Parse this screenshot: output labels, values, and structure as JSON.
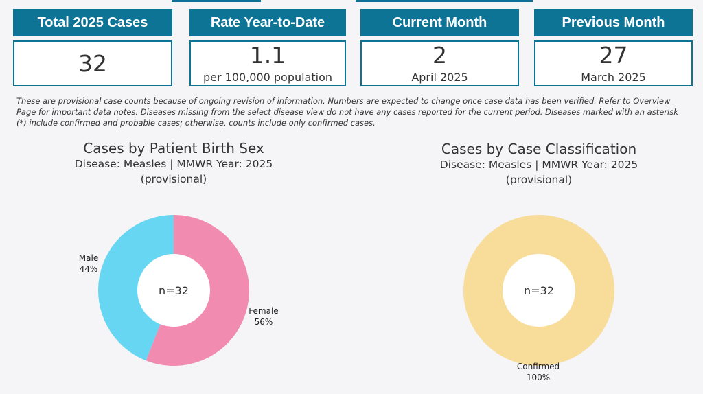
{
  "cards": [
    {
      "title": "Total 2025 Cases",
      "value": "32",
      "sub": ""
    },
    {
      "title": "Rate Year-to-Date",
      "value": "1.1",
      "sub": "per 100,000 population"
    },
    {
      "title": "Current Month",
      "value": "2",
      "sub": "April 2025"
    },
    {
      "title": "Previous Month",
      "value": "27",
      "sub": "March 2025"
    }
  ],
  "note": "These are provisional case counts because of ongoing revision of information. Numbers are expected to change once case data has been verified. Refer to Overview Page for important data notes. Diseases missing from the select disease view do not have any cases reported for the current period. Diseases marked with an asterisk (*) include confirmed and probable cases; otherwise, counts include only confirmed cases.",
  "chart_data": [
    {
      "type": "pie",
      "title": "Cases by Patient Birth Sex",
      "subtitle": "Disease: Measles | MMWR Year: 2025",
      "subtitle2": "(provisional)",
      "center_label": "n=32",
      "slices": [
        {
          "label": "Female",
          "pct_label": "56%",
          "value": 56,
          "color": "#f18bb0"
        },
        {
          "label": "Male",
          "pct_label": "44%",
          "value": 44,
          "color": "#66d6f2"
        }
      ]
    },
    {
      "type": "pie",
      "title": "Cases by Case Classification",
      "subtitle": "Disease: Measles | MMWR Year: 2025",
      "subtitle2": "(provisional)",
      "center_label": "n=32",
      "slices": [
        {
          "label": "Confirmed",
          "pct_label": "100%",
          "value": 100,
          "color": "#f7dc9a"
        }
      ]
    }
  ]
}
